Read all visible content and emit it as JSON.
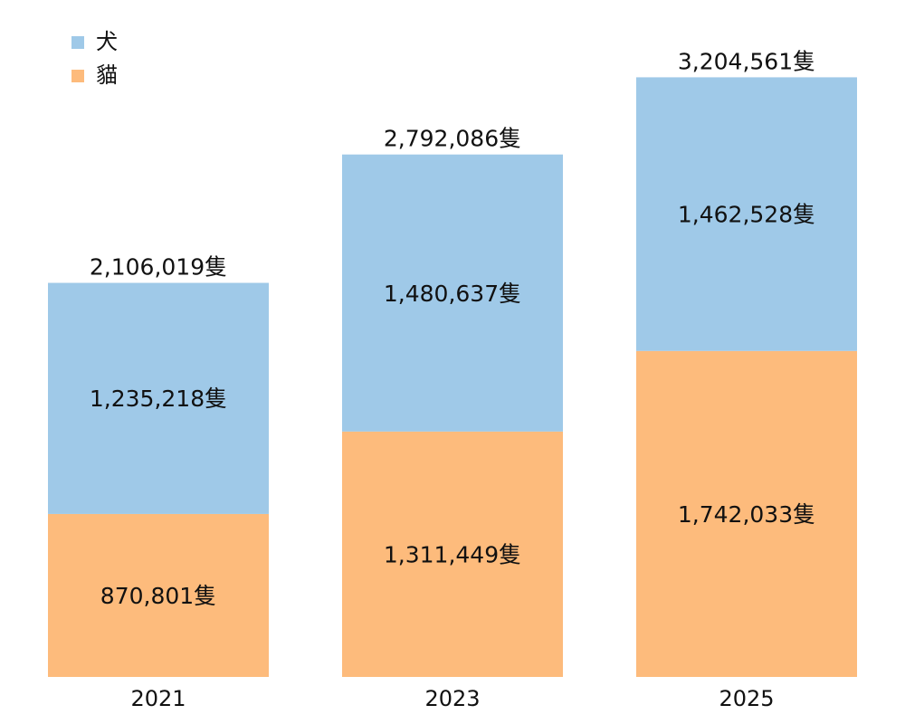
{
  "chart_data": {
    "type": "bar",
    "stacked": true,
    "categories": [
      "2021",
      "2023",
      "2025"
    ],
    "series": [
      {
        "name": "貓",
        "color": "#FDBB7C",
        "values": [
          870801,
          1311449,
          1742033
        ],
        "labels": [
          "870,801隻",
          "1,311,449隻",
          "1,742,033隻"
        ]
      },
      {
        "name": "犬",
        "color": "#9FC9E8",
        "values": [
          1235218,
          1480637,
          1462528
        ],
        "labels": [
          "1,235,218隻",
          "1,480,637隻",
          "1,462,528隻"
        ]
      }
    ],
    "totals": [
      2106019,
      2792086,
      3204561
    ],
    "total_labels": [
      "2,106,019隻",
      "2,792,086隻",
      "3,204,561隻"
    ],
    "legend": {
      "placement": "top-left",
      "items": [
        {
          "name": "犬",
          "color": "#9FC9E8"
        },
        {
          "name": "貓",
          "color": "#FDBB7C"
        }
      ]
    },
    "ylim": [
      0,
      3400000
    ],
    "grid": false,
    "title": "",
    "xlabel": "",
    "ylabel": ""
  }
}
